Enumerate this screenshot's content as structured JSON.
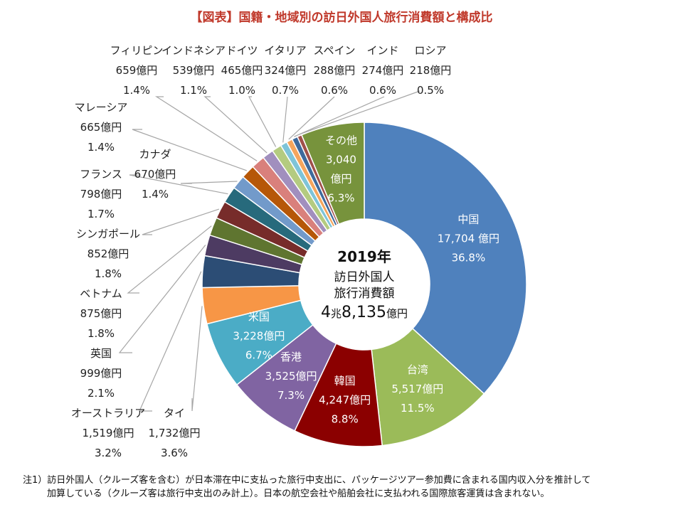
{
  "title": "【図表】国籍・地域別の訪日外国人旅行消費額と構成比",
  "center": {
    "year": "2019年",
    "line1": "訪日外国人",
    "line2": "旅行消費額",
    "total_num1": "4",
    "total_unit1": "兆",
    "total_num2": "8,135",
    "total_unit2": "億円"
  },
  "note": {
    "line1": "注1）訪日外国人（クルーズ客を含む）が日本滞在中に支払った旅行中支出に、パッケージツアー参加費に含まれる国内収入分を推計して",
    "line2": "加算している（クルーズ客は旅行中支出のみ計上）。日本の航空会社や船舶会社に支払われる国際旅客運賃は含まれない。"
  },
  "chart_data": {
    "type": "pie",
    "donut": true,
    "title": "【図表】国籍・地域別の訪日外国人旅行消費額と構成比",
    "unit": "億円",
    "slices": [
      {
        "name": "中国",
        "value": 17704,
        "value_label": "17,704 億円",
        "percent": 36.8,
        "percent_label": "36.8%",
        "color": "#4f81bd",
        "text_color": "#ffffff"
      },
      {
        "name": "台湾",
        "value": 5517,
        "value_label": "5,517億円",
        "percent": 11.5,
        "percent_label": "11.5%",
        "color": "#9bbb59",
        "text_color": "#ffffff"
      },
      {
        "name": "韓国",
        "value": 4247,
        "value_label": "4,247億円",
        "percent": 8.8,
        "percent_label": "8.8%",
        "color": "#8b0000",
        "text_color": "#ffffff"
      },
      {
        "name": "香港",
        "value": 3525,
        "value_label": "3,525億円",
        "percent": 7.3,
        "percent_label": "7.3%",
        "color": "#8064a2",
        "text_color": "#ffffff"
      },
      {
        "name": "米国",
        "value": 3228,
        "value_label": "3,228億円",
        "percent": 6.7,
        "percent_label": "6.7%",
        "color": "#4bacc6",
        "text_color": "#ffffff"
      },
      {
        "name": "タイ",
        "value": 1732,
        "value_label": "1,732億円",
        "percent": 3.6,
        "percent_label": "3.6%",
        "color": "#f79646",
        "text_color": "#222222"
      },
      {
        "name": "オーストラリア",
        "value": 1519,
        "value_label": "1,519億円",
        "percent": 3.2,
        "percent_label": "3.2%",
        "color": "#2c4d75",
        "text_color": "#222222"
      },
      {
        "name": "英国",
        "value": 999,
        "value_label": "999億円",
        "percent": 2.1,
        "percent_label": "2.1%",
        "color": "#4d3b62",
        "text_color": "#222222"
      },
      {
        "name": "ベトナム",
        "value": 875,
        "value_label": "875億円",
        "percent": 1.8,
        "percent_label": "1.8%",
        "color": "#5f7530",
        "text_color": "#222222"
      },
      {
        "name": "シンガポール",
        "value": 852,
        "value_label": "852億円",
        "percent": 1.8,
        "percent_label": "1.8%",
        "color": "#772c2a",
        "text_color": "#222222"
      },
      {
        "name": "フランス",
        "value": 798,
        "value_label": "798億円",
        "percent": 1.7,
        "percent_label": "1.7%",
        "color": "#276a7c",
        "text_color": "#222222"
      },
      {
        "name": "カナダ",
        "value": 670,
        "value_label": "670億円",
        "percent": 1.4,
        "percent_label": "1.4%",
        "color": "#729aca",
        "text_color": "#222222"
      },
      {
        "name": "マレーシア",
        "value": 665,
        "value_label": "665億円",
        "percent": 1.4,
        "percent_label": "1.4%",
        "color": "#b65708",
        "text_color": "#222222"
      },
      {
        "name": "フィリピン",
        "value": 659,
        "value_label": "659億円",
        "percent": 1.4,
        "percent_label": "1.4%",
        "color": "#d9807c",
        "text_color": "#222222"
      },
      {
        "name": "インドネシア",
        "value": 539,
        "value_label": "539億円",
        "percent": 1.1,
        "percent_label": "1.1%",
        "color": "#a18fbe",
        "text_color": "#222222"
      },
      {
        "name": "ドイツ",
        "value": 465,
        "value_label": "465億円",
        "percent": 1.0,
        "percent_label": "1.0%",
        "color": "#b4cb80",
        "text_color": "#222222"
      },
      {
        "name": "イタリア",
        "value": 324,
        "value_label": "324億円",
        "percent": 0.7,
        "percent_label": "0.7%",
        "color": "#7ec4d8",
        "text_color": "#222222"
      },
      {
        "name": "スペイン",
        "value": 288,
        "value_label": "288億円",
        "percent": 0.6,
        "percent_label": "0.6%",
        "color": "#f5a55c",
        "text_color": "#222222"
      },
      {
        "name": "インド",
        "value": 274,
        "value_label": "274億円",
        "percent": 0.6,
        "percent_label": "0.6%",
        "color": "#3e6a9c",
        "text_color": "#222222"
      },
      {
        "name": "ロシア",
        "value": 218,
        "value_label": "218億円",
        "percent": 0.5,
        "percent_label": "0.5%",
        "color": "#a0504a",
        "text_color": "#222222"
      },
      {
        "name": "その他",
        "value_lines": [
          "3,040",
          "億円"
        ],
        "value": 3040,
        "percent": 6.3,
        "percent_label": "6.3%",
        "color": "#77933c",
        "text_color": "#ffffff"
      }
    ]
  }
}
